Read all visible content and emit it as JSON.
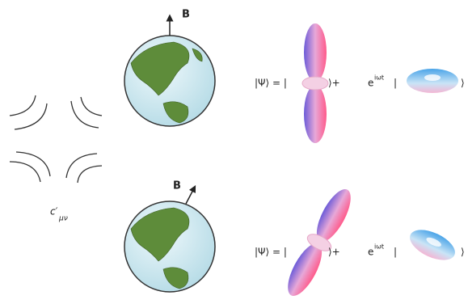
{
  "label": {
    "symbol": "c′",
    "subscript": "μν"
  },
  "panels": [
    {
      "field": "B",
      "equation": {
        "ket_open": "|Ψ⟩ = |",
        "plus": "⟩+",
        "phase_base": "e",
        "phase_exp": "iωt",
        "bar": "|",
        "ket_close": "⟩"
      }
    },
    {
      "field": "B",
      "equation": {
        "ket_open": "|Ψ⟩ = |",
        "plus": "⟩+",
        "phase_base": "e",
        "phase_exp": "iωt",
        "bar": "|",
        "ket_close": "⟩"
      }
    }
  ]
}
